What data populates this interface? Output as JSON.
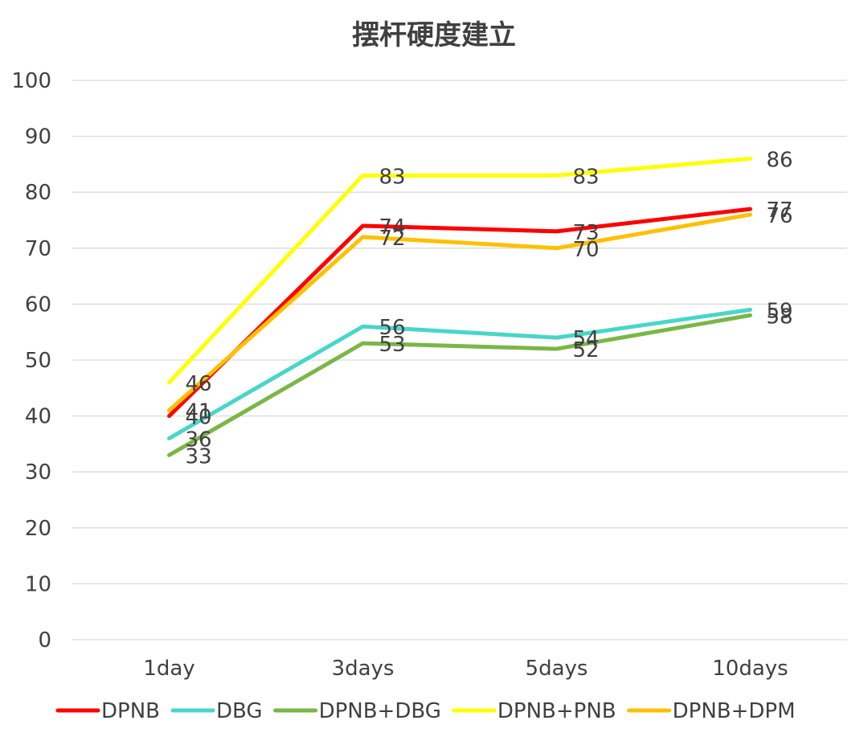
{
  "chart_data": {
    "type": "line",
    "title": "摆杆硬度建立",
    "categories": [
      "1day",
      "3days",
      "5days",
      "10days"
    ],
    "ylim": [
      0,
      100
    ],
    "yticks": [
      0,
      10,
      20,
      30,
      40,
      50,
      60,
      70,
      80,
      90,
      100
    ],
    "grid": true,
    "legend_position": "bottom",
    "series": [
      {
        "name": "DPNB",
        "color": "#ff0000",
        "values": [
          40,
          74,
          73,
          77
        ]
      },
      {
        "name": "DBG",
        "color": "#48d6c8",
        "values": [
          36,
          56,
          54,
          59
        ]
      },
      {
        "name": "DPNB+DBG",
        "color": "#7ab648",
        "values": [
          33,
          53,
          52,
          58
        ]
      },
      {
        "name": "DPNB+PNB",
        "color": "#ffff00",
        "values": [
          46,
          83,
          83,
          86
        ]
      },
      {
        "name": "DPNB+DPM",
        "color": "#ffc000",
        "values": [
          41,
          72,
          70,
          76
        ]
      }
    ]
  }
}
